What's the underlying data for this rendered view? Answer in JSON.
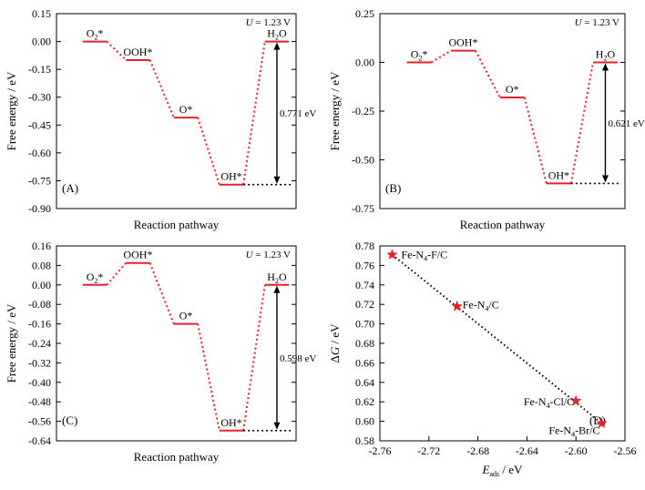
{
  "chart_data": [
    {
      "type": "line",
      "panel_label": "(A)",
      "xlabel": "Reaction pathway",
      "ylabel": "Free energy / eV",
      "annotation": {
        "var": "U",
        "text": " = 1.23 V"
      },
      "ylim": [
        -0.9,
        0.15
      ],
      "yticks": [
        "0.15",
        "0.00",
        "-0.15",
        "-0.30",
        "-0.45",
        "-0.60",
        "-0.75",
        "-0.90"
      ],
      "grid": false,
      "states": [
        {
          "label": "O2*",
          "base": "O",
          "sub": "2",
          "sup": "*",
          "value": 0.0
        },
        {
          "label": "OOH*",
          "base": "OOH*",
          "value": -0.1
        },
        {
          "label": "O*",
          "base": "O*",
          "value": -0.41
        },
        {
          "label": "OH*",
          "base": "OH*",
          "value": -0.771
        },
        {
          "label": "H2O",
          "base": "H",
          "sub": "2",
          "tail": "O",
          "value": 0.0
        }
      ],
      "gap_label": "0.771 eV"
    },
    {
      "type": "line",
      "panel_label": "(B)",
      "xlabel": "Reaction pathway",
      "ylabel": "Free energy / eV",
      "annotation": {
        "var": "U",
        "text": " = 1.23 V"
      },
      "ylim": [
        -0.75,
        0.25
      ],
      "yticks": [
        "0.25",
        "0.00",
        "-0.25",
        "-0.50",
        "-0.75"
      ],
      "grid": false,
      "states": [
        {
          "label": "O2*",
          "base": "O",
          "sub": "2",
          "sup": "*",
          "value": 0.0
        },
        {
          "label": "OOH*",
          "base": "OOH*",
          "value": 0.06
        },
        {
          "label": "O*",
          "base": "O*",
          "value": -0.18
        },
        {
          "label": "OH*",
          "base": "OH*",
          "value": -0.621
        },
        {
          "label": "H2O",
          "base": "H",
          "sub": "2",
          "tail": "O",
          "value": 0.0
        }
      ],
      "gap_label": "0.621 eV"
    },
    {
      "type": "line",
      "panel_label": "(C)",
      "xlabel": "Reaction pathway",
      "ylabel": "Free energy / eV",
      "annotation": {
        "var": "U",
        "text": " = 1.23 V"
      },
      "ylim": [
        -0.64,
        0.16
      ],
      "yticks": [
        "0.16",
        "0.08",
        "0.00",
        "-0.08",
        "-0.16",
        "-0.24",
        "-0.32",
        "-0.40",
        "-0.48",
        "-0.56",
        "-0.64"
      ],
      "grid": false,
      "states": [
        {
          "label": "O2*",
          "base": "O",
          "sub": "2",
          "sup": "*",
          "value": 0.0
        },
        {
          "label": "OOH*",
          "base": "OOH*",
          "value": 0.09
        },
        {
          "label": "O*",
          "base": "O*",
          "value": -0.16
        },
        {
          "label": "OH*",
          "base": "OH*",
          "value": -0.598
        },
        {
          "label": "H2O",
          "base": "H",
          "sub": "2",
          "tail": "O",
          "value": 0.0
        }
      ],
      "gap_label": "0.598 eV"
    },
    {
      "type": "scatter",
      "panel_label": "(D)",
      "xlabel": {
        "var": "E",
        "sub": "ads",
        "text": " / eV"
      },
      "ylabel": {
        "prefix": "Δ",
        "var": "G",
        "text": " / eV"
      },
      "xlim": [
        -2.76,
        -2.56
      ],
      "ylim": [
        0.58,
        0.78
      ],
      "xticks": [
        "-2.76",
        "-2.72",
        "-2.68",
        "-2.64",
        "-2.60",
        "-2.56"
      ],
      "yticks": [
        "0.78",
        "0.76",
        "0.74",
        "0.72",
        "0.70",
        "0.68",
        "0.66",
        "0.64",
        "0.62",
        "0.60",
        "0.58"
      ],
      "grid": false,
      "points": [
        {
          "name": "Fe-N4-F/C",
          "pre": "Fe-N",
          "sub": "4",
          "post": "-F/C",
          "x": -2.75,
          "y": 0.771
        },
        {
          "name": "Fe-N4/C",
          "pre": "Fe-N",
          "sub": "4",
          "post": "/C",
          "x": -2.697,
          "y": 0.718
        },
        {
          "name": "Fe-N4-Cl/C",
          "pre": "Fe-N",
          "sub": "4",
          "post": "-Cl/C",
          "x": -2.6,
          "y": 0.621
        },
        {
          "name": "Fe-N4-Br/C",
          "pre": "Fe-N",
          "sub": "4",
          "post": "-Br/C",
          "x": -2.579,
          "y": 0.598
        }
      ],
      "fit_line": [
        {
          "x": -2.75,
          "y": 0.771
        },
        {
          "x": -2.579,
          "y": 0.598
        }
      ],
      "colors": {
        "marker": "#e8202a"
      }
    }
  ],
  "colors": {
    "profile": "#e8202a",
    "axis": "#000000"
  }
}
